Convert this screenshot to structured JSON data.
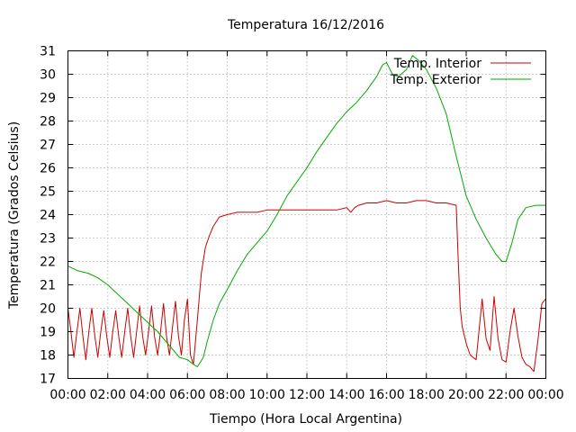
{
  "chart_data": {
    "type": "line",
    "title": "Temperatura 16/12/2016",
    "xlabel": "Tiempo (Hora Local Argentina)",
    "ylabel": "Temperatura (Grados Celsius)",
    "xlim": [
      0,
      24
    ],
    "ylim": [
      17,
      31
    ],
    "x_tick_labels": [
      "00:00",
      "02:00",
      "04:00",
      "06:00",
      "08:00",
      "10:00",
      "12:00",
      "14:00",
      "16:00",
      "18:00",
      "20:00",
      "22:00",
      "00:00"
    ],
    "y_ticks": [
      17,
      18,
      19,
      20,
      21,
      22,
      23,
      24,
      25,
      26,
      27,
      28,
      29,
      30,
      31
    ],
    "grid": true,
    "legend_position": "top-right",
    "series": [
      {
        "name": "Temp. Interior",
        "color": "#cc0000",
        "x": [
          0,
          0.15,
          0.3,
          0.45,
          0.6,
          0.75,
          0.9,
          1.05,
          1.2,
          1.35,
          1.5,
          1.65,
          1.8,
          1.95,
          2.1,
          2.25,
          2.4,
          2.55,
          2.7,
          2.85,
          3.0,
          3.15,
          3.3,
          3.45,
          3.6,
          3.75,
          3.9,
          4.05,
          4.2,
          4.35,
          4.5,
          4.65,
          4.8,
          4.95,
          5.1,
          5.25,
          5.4,
          5.55,
          5.7,
          5.85,
          6.0,
          6.15,
          6.3,
          6.5,
          6.7,
          6.9,
          7.1,
          7.3,
          7.6,
          8.0,
          8.5,
          9.0,
          9.5,
          10.0,
          10.5,
          11.0,
          11.5,
          12.0,
          12.5,
          13.0,
          13.5,
          14.0,
          14.2,
          14.4,
          14.6,
          15.0,
          15.5,
          16.0,
          16.5,
          17.0,
          17.5,
          18.0,
          18.5,
          19.0,
          19.5,
          19.6,
          19.7,
          19.8,
          20.0,
          20.2,
          20.5,
          20.8,
          21.0,
          21.2,
          21.4,
          21.6,
          21.8,
          22.0,
          22.2,
          22.4,
          22.6,
          22.8,
          23.0,
          23.2,
          23.4,
          23.6,
          23.8,
          24.0
        ],
        "values": [
          20.0,
          19.0,
          17.9,
          19.0,
          20.0,
          18.8,
          17.8,
          19.0,
          20.0,
          18.8,
          17.9,
          19.0,
          19.9,
          18.8,
          17.9,
          19.0,
          19.9,
          18.8,
          17.9,
          19.0,
          20.0,
          18.8,
          17.9,
          19.0,
          20.1,
          18.8,
          18.0,
          19.0,
          20.1,
          18.8,
          18.0,
          19.0,
          20.2,
          18.8,
          18.0,
          19.2,
          20.3,
          18.8,
          18.0,
          19.5,
          20.4,
          18.0,
          17.6,
          19.5,
          21.5,
          22.6,
          23.1,
          23.5,
          23.9,
          24.0,
          24.1,
          24.1,
          24.1,
          24.2,
          24.2,
          24.2,
          24.2,
          24.2,
          24.2,
          24.2,
          24.2,
          24.3,
          24.1,
          24.3,
          24.4,
          24.5,
          24.5,
          24.6,
          24.5,
          24.5,
          24.6,
          24.6,
          24.5,
          24.5,
          24.4,
          22.0,
          20.0,
          19.2,
          18.5,
          18.0,
          17.8,
          20.4,
          18.7,
          18.2,
          20.5,
          18.7,
          17.8,
          17.7,
          19.0,
          20.0,
          18.8,
          17.9,
          17.6,
          17.5,
          17.3,
          18.6,
          20.2,
          20.4
        ]
      },
      {
        "name": "Temp. Exterior",
        "color": "#00aa00",
        "x": [
          0,
          0.5,
          1.0,
          1.5,
          2.0,
          2.5,
          3.0,
          3.5,
          4.0,
          4.5,
          5.0,
          5.3,
          5.6,
          6.0,
          6.3,
          6.5,
          6.8,
          7.0,
          7.3,
          7.6,
          8.0,
          8.5,
          9.0,
          9.5,
          10.0,
          10.5,
          11.0,
          11.5,
          12.0,
          12.5,
          13.0,
          13.5,
          14.0,
          14.5,
          15.0,
          15.5,
          15.8,
          16.0,
          16.3,
          16.6,
          17.0,
          17.3,
          17.6,
          18.0,
          18.5,
          19.0,
          19.5,
          20.0,
          20.5,
          21.0,
          21.5,
          21.8,
          22.0,
          22.3,
          22.6,
          23.0,
          23.5,
          24.0
        ],
        "values": [
          21.8,
          21.6,
          21.5,
          21.3,
          21.0,
          20.6,
          20.2,
          19.8,
          19.4,
          19.0,
          18.5,
          18.2,
          17.9,
          17.8,
          17.6,
          17.5,
          17.9,
          18.6,
          19.5,
          20.2,
          20.8,
          21.6,
          22.3,
          22.8,
          23.3,
          24.0,
          24.8,
          25.4,
          26.0,
          26.7,
          27.3,
          27.9,
          28.4,
          28.8,
          29.3,
          29.9,
          30.4,
          30.5,
          30.0,
          29.9,
          30.2,
          30.8,
          30.6,
          30.2,
          29.4,
          28.3,
          26.5,
          24.8,
          23.8,
          23.0,
          22.3,
          22.0,
          22.0,
          22.8,
          23.8,
          24.3,
          24.4,
          24.4
        ]
      }
    ]
  }
}
